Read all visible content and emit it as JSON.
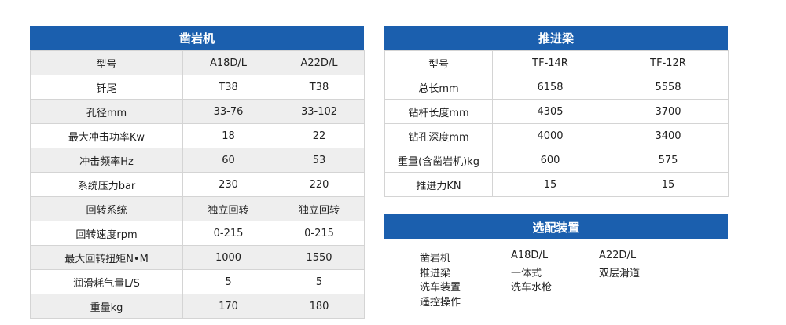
{
  "rock_drill": {
    "title": "凿岩机",
    "header": [
      "型号",
      "A18D/L",
      "A22D/L"
    ],
    "rows": [
      [
        "钎尾",
        "T38",
        "T38"
      ],
      [
        "孔径mm",
        "33-76",
        "33-102"
      ],
      [
        "最大冲击功率Kw",
        "18",
        "22"
      ],
      [
        "冲击频率Hz",
        "60",
        "53"
      ],
      [
        "系统压力bar",
        "230",
        "220"
      ],
      [
        "回转系统",
        "独立回转",
        "独立回转"
      ],
      [
        "回转速度rpm",
        "0-215",
        "0-215"
      ],
      [
        "最大回转扭矩N•M",
        "1000",
        "1550"
      ],
      [
        "润滑耗气量L/S",
        "5",
        "5"
      ],
      [
        "重量kg",
        "170",
        "180"
      ]
    ]
  },
  "feed_beam": {
    "title": "推进梁",
    "header": [
      "型号",
      "TF-14R",
      "TF-12R"
    ],
    "rows": [
      [
        "总长mm",
        "6158",
        "5558"
      ],
      [
        "钻杆长度mm",
        "4305",
        "3700"
      ],
      [
        "钻孔深度mm",
        "4000",
        "3400"
      ],
      [
        "重量(含凿岩机)kg",
        "600",
        "575"
      ],
      [
        "推进力KN",
        "15",
        "15"
      ]
    ]
  },
  "options": {
    "title": "选配装置",
    "rows": [
      [
        "凿岩机",
        "A18D/L",
        "A22D/L"
      ],
      [
        "推进梁",
        "一体式",
        "双层滑道"
      ],
      [
        "洗车装置",
        "洗车水枪",
        ""
      ],
      [
        "遥控操作",
        "",
        ""
      ]
    ]
  }
}
